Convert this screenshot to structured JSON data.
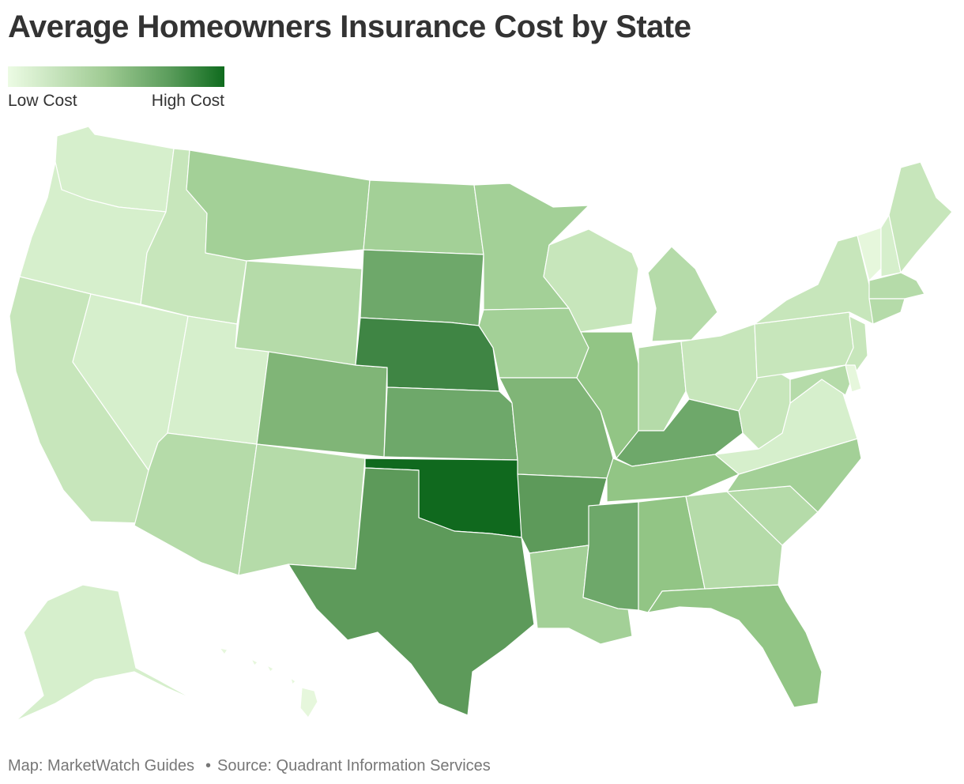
{
  "title": "Average Homeowners Insurance Cost by State",
  "legend": {
    "low_label": "Low Cost",
    "high_label": "High Cost"
  },
  "footer": {
    "map_credit": "Map: MarketWatch Guides",
    "separator": "•",
    "source": "Source: Quadrant Information Services"
  },
  "colors": {
    "l1": "#e6f7dc",
    "l2": "#d6efcc",
    "l3": "#c7e6bb",
    "l4": "#b5dba9",
    "l5": "#a3d097",
    "l6": "#92c585",
    "l7": "#80b577",
    "l8": "#6ea86a",
    "l9": "#5d9a5a",
    "l10": "#3f8544",
    "l11": "#10691e"
  },
  "states": [
    {
      "id": "WA",
      "level": "l2"
    },
    {
      "id": "OR",
      "level": "l2"
    },
    {
      "id": "CA",
      "level": "l3"
    },
    {
      "id": "NV",
      "level": "l2"
    },
    {
      "id": "ID",
      "level": "l3"
    },
    {
      "id": "MT",
      "level": "l5"
    },
    {
      "id": "WY",
      "level": "l4"
    },
    {
      "id": "UT",
      "level": "l2"
    },
    {
      "id": "AZ",
      "level": "l4"
    },
    {
      "id": "CO",
      "level": "l7"
    },
    {
      "id": "NM",
      "level": "l4"
    },
    {
      "id": "ND",
      "level": "l5"
    },
    {
      "id": "SD",
      "level": "l8"
    },
    {
      "id": "NE",
      "level": "l10"
    },
    {
      "id": "KS",
      "level": "l8"
    },
    {
      "id": "OK",
      "level": "l11"
    },
    {
      "id": "TX",
      "level": "l9"
    },
    {
      "id": "MN",
      "level": "l5"
    },
    {
      "id": "IA",
      "level": "l5"
    },
    {
      "id": "MO",
      "level": "l7"
    },
    {
      "id": "AR",
      "level": "l9"
    },
    {
      "id": "LA",
      "level": "l5"
    },
    {
      "id": "WI",
      "level": "l3"
    },
    {
      "id": "IL",
      "level": "l6"
    },
    {
      "id": "MI",
      "level": "l4"
    },
    {
      "id": "IN",
      "level": "l4"
    },
    {
      "id": "OH",
      "level": "l3"
    },
    {
      "id": "KY",
      "level": "l8"
    },
    {
      "id": "TN",
      "level": "l6"
    },
    {
      "id": "MS",
      "level": "l8"
    },
    {
      "id": "AL",
      "level": "l6"
    },
    {
      "id": "FL",
      "level": "l6"
    },
    {
      "id": "GA",
      "level": "l4"
    },
    {
      "id": "SC",
      "level": "l4"
    },
    {
      "id": "NC",
      "level": "l5"
    },
    {
      "id": "VA",
      "level": "l2"
    },
    {
      "id": "WV",
      "level": "l3"
    },
    {
      "id": "PA",
      "level": "l3"
    },
    {
      "id": "NY",
      "level": "l3"
    },
    {
      "id": "VT",
      "level": "l1"
    },
    {
      "id": "NH",
      "level": "l2"
    },
    {
      "id": "ME",
      "level": "l3"
    },
    {
      "id": "MA",
      "level": "l4"
    },
    {
      "id": "CT",
      "level": "l4"
    },
    {
      "id": "NJ",
      "level": "l3"
    },
    {
      "id": "MD",
      "level": "l4"
    },
    {
      "id": "DE",
      "level": "l1"
    },
    {
      "id": "AK",
      "level": "l2"
    },
    {
      "id": "HI",
      "level": "l1"
    }
  ]
}
